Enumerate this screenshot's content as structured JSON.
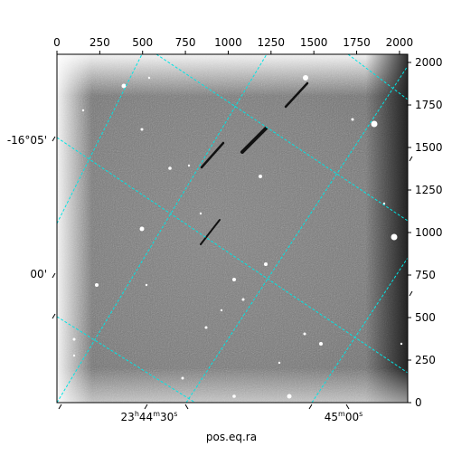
{
  "chart_data": {
    "type": "image",
    "title": "",
    "xlabel": "pos.eq.ra",
    "ylabel": "",
    "pixel_axes": {
      "x": {
        "range": [
          0,
          2048
        ],
        "ticks": [
          0,
          250,
          500,
          750,
          1000,
          1250,
          1500,
          1750,
          2000
        ],
        "position": "top"
      },
      "y": {
        "range": [
          0,
          2048
        ],
        "ticks": [
          0,
          250,
          500,
          750,
          1000,
          1250,
          1500,
          1750,
          2000
        ],
        "position": "right"
      }
    },
    "world_axes": {
      "ra_label": "pos.eq.ra",
      "ra_tick_labels": [
        {
          "text": "23h44m30s",
          "base": "23",
          "h": "h",
          "mid": "44",
          "m": "m",
          "last": "30",
          "s": "s"
        },
        {
          "text": "45m00s",
          "base": "",
          "h": "",
          "mid": "45",
          "m": "m",
          "last": "00",
          "s": "s"
        }
      ],
      "dec_tick_labels": [
        "-16°05'",
        "00'"
      ]
    },
    "grid": true,
    "grid_color": "#00e5e5",
    "image_colormap": "gray",
    "features": {
      "streaks": 4,
      "bright_stars": 3
    }
  }
}
